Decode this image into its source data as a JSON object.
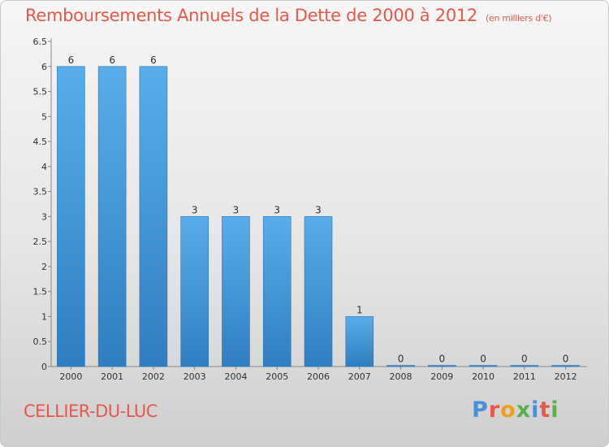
{
  "header": {
    "title": "Remboursements Annuels de la Dette de 2000 à 2012",
    "unit": "(en milliers d'€)"
  },
  "footer": {
    "commune": "CELLIER-DU-LUC",
    "logo_text": "Proxiti"
  },
  "colors": {
    "bar_top": "#5aacea",
    "bar_bottom": "#2f7fc0",
    "title": "#e8574a",
    "logo": [
      "#4a90d9",
      "#e8574a",
      "#f0a020",
      "#5ab04a",
      "#4a90d9",
      "#e8574a",
      "#5ab04a"
    ]
  },
  "chart_data": {
    "type": "bar",
    "title": "Remboursements Annuels de la Dette de 2000 à 2012",
    "categories": [
      "2000",
      "2001",
      "2002",
      "2003",
      "2004",
      "2005",
      "2006",
      "2007",
      "2008",
      "2009",
      "2010",
      "2011",
      "2012"
    ],
    "values": [
      6,
      6,
      6,
      3,
      3,
      3,
      3,
      1,
      0,
      0,
      0,
      0,
      0
    ],
    "data_labels": [
      "6",
      "6",
      "6",
      "3",
      "3",
      "3",
      "3",
      "1",
      "0",
      "0",
      "0",
      "0",
      "0"
    ],
    "ylim": [
      0,
      6.5
    ],
    "yticks": [
      "0",
      "0.5",
      "1",
      "1.5",
      "2",
      "2.5",
      "3",
      "3.5",
      "4",
      "4.5",
      "5",
      "5.5",
      "6",
      "6.5"
    ],
    "grid": false,
    "legend": "none"
  }
}
